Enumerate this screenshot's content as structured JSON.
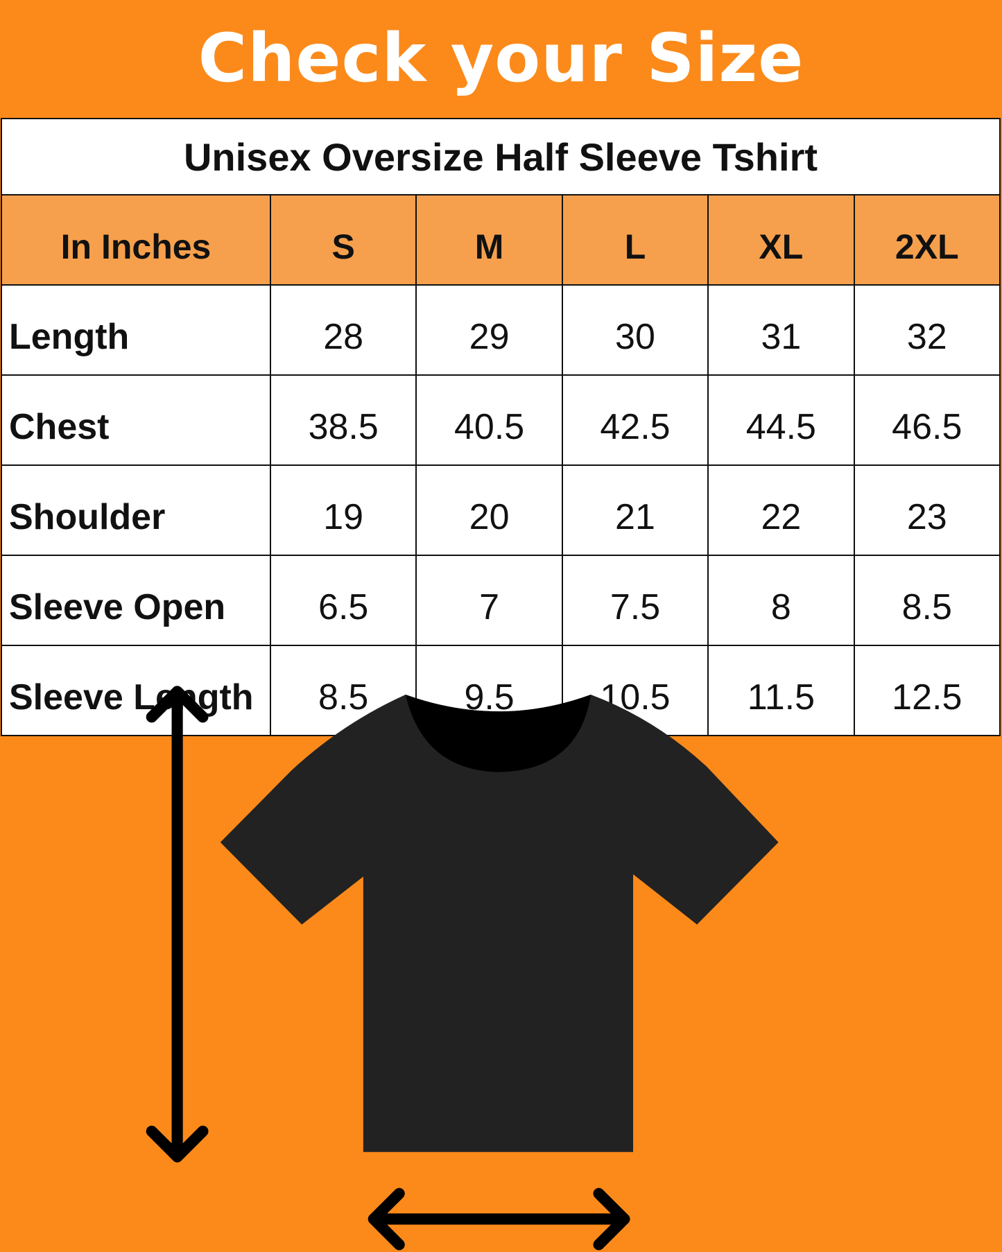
{
  "title": "Check your Size",
  "table": {
    "caption": "Unisex Oversize Half Sleeve Tshirt",
    "unit_header": "In Inches",
    "sizes": [
      "S",
      "M",
      "L",
      "XL",
      "2XL"
    ],
    "rows": [
      {
        "label": "Length",
        "values": [
          "28",
          "29",
          "30",
          "31",
          "32"
        ]
      },
      {
        "label": "Chest",
        "values": [
          "38.5",
          "40.5",
          "42.5",
          "44.5",
          "46.5"
        ]
      },
      {
        "label": "Shoulder",
        "values": [
          "19",
          "20",
          "21",
          "22",
          "23"
        ]
      },
      {
        "label": "Sleeve Open",
        "values": [
          "6.5",
          "7",
          "7.5",
          "8",
          "8.5"
        ]
      },
      {
        "label": "Sleeve Length",
        "values": [
          "8.5",
          "9.5",
          "10.5",
          "11.5",
          "12.5"
        ]
      }
    ]
  },
  "colors": {
    "background": "#fb8a1a",
    "header": "#f6a04d",
    "tshirt": "#222222"
  }
}
